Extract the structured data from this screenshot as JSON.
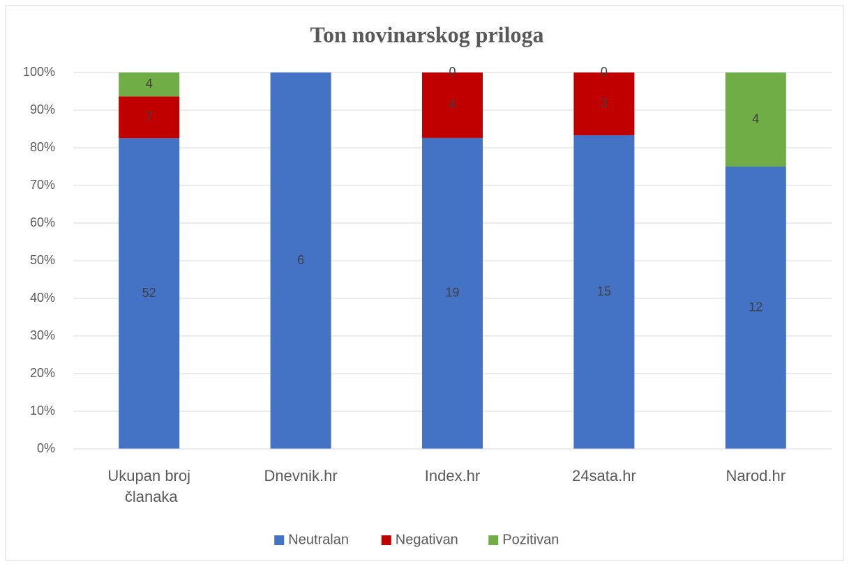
{
  "chart_data": {
    "type": "bar",
    "stacked": "percent",
    "title": "Ton novinarskog priloga",
    "categories": [
      "Ukupan broj članaka",
      "Dnevnik.hr",
      "Index.hr",
      "24sata.hr",
      "Narod.hr"
    ],
    "series": [
      {
        "name": "Neutralan",
        "color": "#4472c4",
        "values": [
          52,
          6,
          19,
          15,
          12
        ]
      },
      {
        "name": "Negativan",
        "color": "#c00000",
        "values": [
          7,
          null,
          4,
          3,
          null
        ]
      },
      {
        "name": "Pozitivan",
        "color": "#70ad47",
        "values": [
          4,
          null,
          0,
          0,
          4
        ]
      }
    ],
    "ylim": [
      0,
      100
    ],
    "yticks": [
      {
        "value": 0,
        "label": "0%"
      },
      {
        "value": 10,
        "label": "10%"
      },
      {
        "value": 20,
        "label": "20%"
      },
      {
        "value": 30,
        "label": "30%"
      },
      {
        "value": 40,
        "label": "40%"
      },
      {
        "value": 50,
        "label": "50%"
      },
      {
        "value": 60,
        "label": "60%"
      },
      {
        "value": 70,
        "label": "70%"
      },
      {
        "value": 80,
        "label": "80%"
      },
      {
        "value": 90,
        "label": "90%"
      },
      {
        "value": 100,
        "label": "100%"
      }
    ],
    "grid": true,
    "legend": "bottom"
  }
}
